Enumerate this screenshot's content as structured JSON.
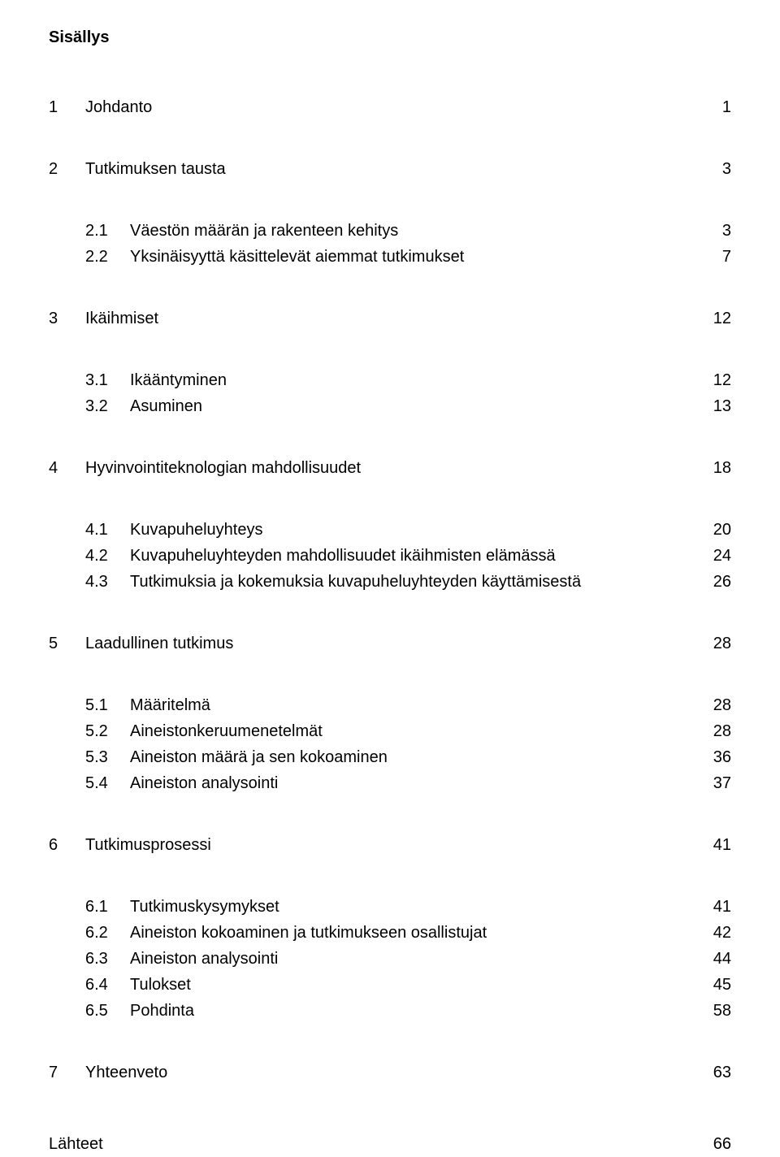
{
  "title": "Sisällys",
  "s1": {
    "n": "1",
    "t": "Johdanto",
    "p": "1"
  },
  "s2": {
    "n": "2",
    "t": "Tutkimuksen tausta",
    "p": "3"
  },
  "s2_1": {
    "n": "2.1",
    "t": "Väestön määrän ja rakenteen kehitys",
    "p": "3"
  },
  "s2_2": {
    "n": "2.2",
    "t": "Yksinäisyyttä käsittelevät aiemmat tutkimukset",
    "p": "7"
  },
  "s3": {
    "n": "3",
    "t": "Ikäihmiset",
    "p": "12"
  },
  "s3_1": {
    "n": "3.1",
    "t": "Ikääntyminen",
    "p": "12"
  },
  "s3_2": {
    "n": "3.2",
    "t": "Asuminen",
    "p": "13"
  },
  "s4": {
    "n": "4",
    "t": "Hyvinvointiteknologian mahdollisuudet",
    "p": "18"
  },
  "s4_1": {
    "n": "4.1",
    "t": "Kuvapuheluyhteys",
    "p": "20"
  },
  "s4_2": {
    "n": "4.2",
    "t": "Kuvapuheluyhteyden mahdollisuudet ikäihmisten elämässä",
    "p": "24"
  },
  "s4_3": {
    "n": "4.3",
    "t": "Tutkimuksia ja kokemuksia kuvapuheluyhteyden käyttämisestä",
    "p": "26"
  },
  "s5": {
    "n": "5",
    "t": "Laadullinen tutkimus",
    "p": "28"
  },
  "s5_1": {
    "n": "5.1",
    "t": "Määritelmä",
    "p": "28"
  },
  "s5_2": {
    "n": "5.2",
    "t": "Aineistonkeruumenetelmät",
    "p": "28"
  },
  "s5_3": {
    "n": "5.3",
    "t": "Aineiston määrä ja sen kokoaminen",
    "p": "36"
  },
  "s5_4": {
    "n": "5.4",
    "t": "Aineiston analysointi",
    "p": "37"
  },
  "s6": {
    "n": "6",
    "t": "Tutkimusprosessi",
    "p": "41"
  },
  "s6_1": {
    "n": "6.1",
    "t": "Tutkimuskysymykset",
    "p": "41"
  },
  "s6_2": {
    "n": "6.2",
    "t": "Aineiston kokoaminen ja tutkimukseen osallistujat",
    "p": "42"
  },
  "s6_3": {
    "n": "6.3",
    "t": "Aineiston analysointi",
    "p": "44"
  },
  "s6_4": {
    "n": "6.4",
    "t": "Tulokset",
    "p": "45"
  },
  "s6_5": {
    "n": "6.5",
    "t": "Pohdinta",
    "p": "58"
  },
  "s7": {
    "n": "7",
    "t": "Yhteenveto",
    "p": "63"
  },
  "refs": {
    "t": "Lähteet",
    "p": "66"
  }
}
